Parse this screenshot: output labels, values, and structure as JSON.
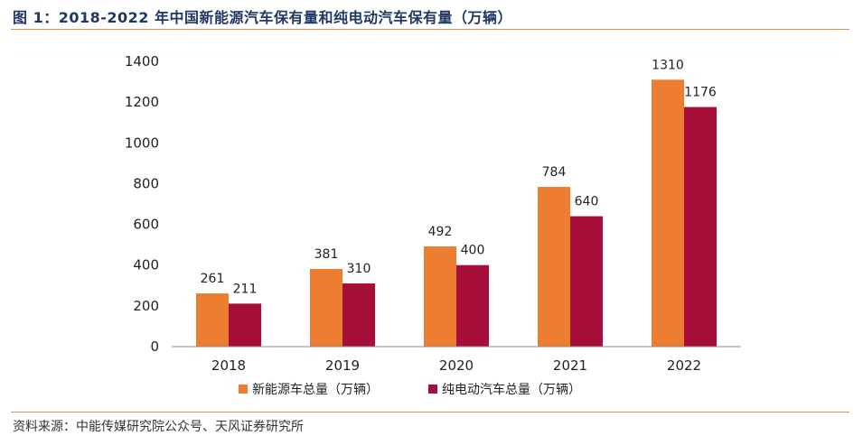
{
  "header": {
    "title": "图 1：2018-2022 年中国新能源汽车保有量和纯电动汽车保有量（万辆）"
  },
  "footer": {
    "source": "资料来源：中能传媒研究院公众号、天风证券研究所"
  },
  "colors": {
    "series1": "#ed7d31",
    "series2": "#a50f3a",
    "rule": "#e69138",
    "title": "#1f3864"
  },
  "chart_data": {
    "type": "bar",
    "categories": [
      "2018",
      "2019",
      "2020",
      "2021",
      "2022"
    ],
    "series": [
      {
        "name": "新能源车总量（万辆）",
        "values": [
          261,
          381,
          492,
          784,
          1310
        ]
      },
      {
        "name": "纯电动汽车总量（万辆）",
        "values": [
          211,
          310,
          400,
          640,
          1176
        ]
      }
    ],
    "ylim": [
      0,
      1400
    ],
    "yticks": [
      0,
      200,
      400,
      600,
      800,
      1000,
      1200,
      1400
    ],
    "title": "",
    "xlabel": "",
    "ylabel": "",
    "grid": false,
    "legend_position": "bottom"
  }
}
